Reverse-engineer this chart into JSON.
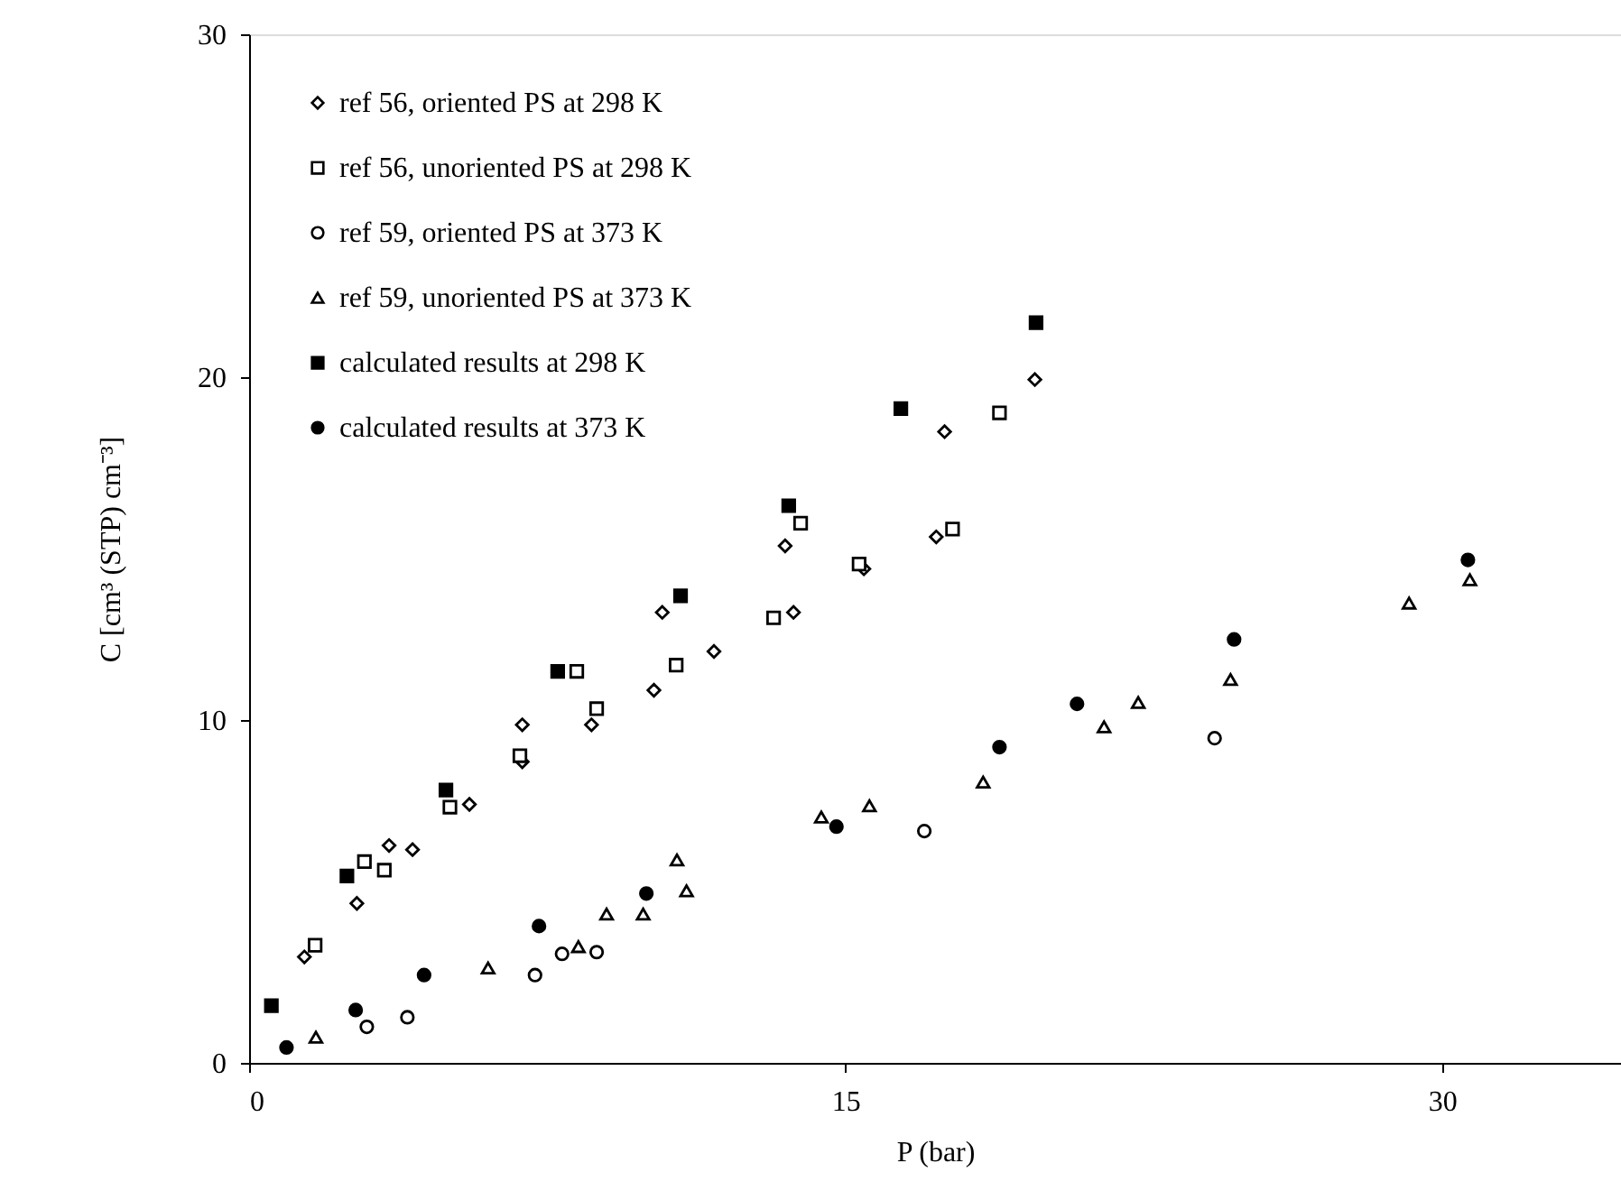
{
  "chart_data": {
    "type": "scatter",
    "xlabel": "P (bar)",
    "ylabel": "C [cm³ (STP) cm⁻³]",
    "xlim": [
      0,
      34.5
    ],
    "ylim": [
      0,
      30
    ],
    "xticks": [
      0,
      15,
      30
    ],
    "yticks": [
      0,
      10,
      20,
      30
    ],
    "grid": false,
    "legend": "top left",
    "series": [
      {
        "name": "ref 56, oriented PS at 298 K",
        "color": "#000000",
        "marker": "diamond",
        "x": [
          1.39,
          2.71,
          3.52,
          4.11,
          5.54,
          6.87,
          6.87,
          8.61,
          10.18,
          10.39,
          11.69,
          13.48,
          13.69,
          15.46,
          17.28,
          17.49,
          19.76
        ],
        "values": [
          3.09,
          4.65,
          6.34,
          6.22,
          7.54,
          9.86,
          8.78,
          9.86,
          10.87,
          13.14,
          12.0,
          15.08,
          13.14,
          14.41,
          15.34,
          18.41,
          19.93
        ]
      },
      {
        "name": "ref 56, unoriented PS at 298 K",
        "color": "#000000",
        "marker": "square",
        "x": [
          1.66,
          2.9,
          3.4,
          5.05,
          6.81,
          8.24,
          8.74,
          10.74,
          13.19,
          13.87,
          15.34,
          17.69,
          18.87
        ],
        "values": [
          3.43,
          5.87,
          5.62,
          7.46,
          8.96,
          11.42,
          10.33,
          11.6,
          12.98,
          15.74,
          14.55,
          15.57,
          18.96
        ]
      },
      {
        "name": "ref 59, oriented PS at 373 K",
        "color": "#000000",
        "marker": "circle",
        "x": [
          2.96,
          3.98,
          7.19,
          7.87,
          8.74,
          16.98,
          24.28
        ],
        "values": [
          1.05,
          1.33,
          2.56,
          3.18,
          3.23,
          6.76,
          9.47
        ]
      },
      {
        "name": "ref 59, unoriented PS at 373 K",
        "color": "#000000",
        "marker": "triangle",
        "x": [
          1.68,
          6.01,
          8.28,
          8.99,
          9.91,
          10.76,
          11.0,
          14.39,
          15.6,
          18.46,
          21.5,
          22.36,
          24.68,
          29.17,
          30.7
        ],
        "values": [
          0.75,
          2.77,
          3.39,
          4.34,
          4.34,
          5.92,
          5.02,
          7.17,
          7.5,
          8.19,
          9.8,
          10.51,
          11.18,
          13.41,
          14.09
        ]
      },
      {
        "name": "calculated results at 298 K",
        "color": "#000000",
        "marker": "square",
        "x": [
          0.56,
          2.46,
          4.95,
          7.76,
          10.85,
          13.57,
          16.39,
          19.79
        ],
        "values": [
          1.67,
          5.45,
          7.96,
          11.42,
          13.62,
          16.25,
          19.08,
          21.59
        ]
      },
      {
        "name": "calculated results at 373 K",
        "color": "#000000",
        "marker": "circle",
        "x": [
          0.94,
          2.68,
          4.4,
          7.29,
          9.99,
          14.77,
          18.87,
          20.82,
          24.77,
          30.65
        ],
        "values": [
          0.45,
          1.54,
          2.56,
          3.99,
          4.94,
          6.89,
          9.21,
          10.47,
          12.35,
          14.67
        ]
      }
    ]
  }
}
